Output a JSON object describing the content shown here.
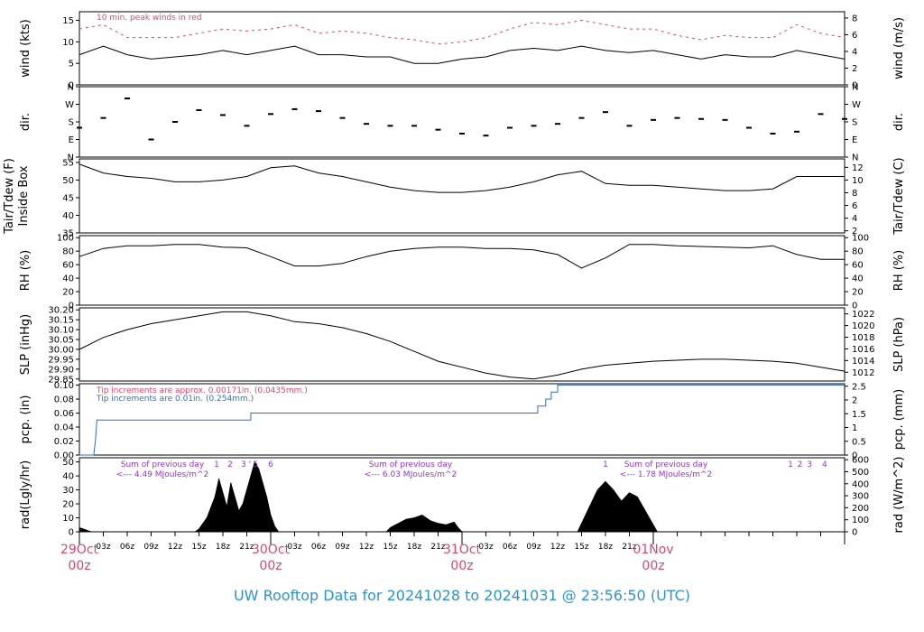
{
  "colors": {
    "peak": "#e0456a",
    "precip_tipping": "#2a6fd0",
    "rad_note": "#9b30d8",
    "footer": "#2a93d5",
    "black": "#000000"
  },
  "footer_title": "UW Rooftop Data for 20241028  to  20241031 @ 23:56:50  (UTC)",
  "x_axis": {
    "hour_labels": [
      "03z",
      "06z",
      "09z",
      "12z",
      "15z",
      "18z",
      "21z",
      "03z",
      "06z",
      "09z",
      "12z",
      "15z",
      "18z",
      "21z",
      "03z",
      "06z",
      "09z",
      "12z",
      "15z",
      "18z",
      "21z"
    ],
    "day_labels": [
      {
        "date": "29Oct",
        "hour": "00z"
      },
      {
        "date": "30Oct",
        "hour": "00z"
      },
      {
        "date": "31Oct",
        "hour": "00z"
      },
      {
        "date": "01Nov",
        "hour": "00z"
      }
    ]
  },
  "panels": {
    "wind": {
      "left_label": "wind (kts)",
      "right_label": "wind (m/s)",
      "left_ticks": [
        "0",
        "5",
        "10",
        "15"
      ],
      "right_ticks": [
        "0",
        "2",
        "4",
        "6",
        "8"
      ],
      "note": "10 min. peak winds in red"
    },
    "dir": {
      "left_label": "dir.",
      "right_label": "dir.",
      "left_ticks": [
        "N",
        "E",
        "S",
        "W",
        "N"
      ],
      "right_ticks": [
        "N",
        "E",
        "S",
        "W",
        "N"
      ]
    },
    "temp": {
      "left_label_1": "Tair/Tdew (F)",
      "left_label_2": "Inside Box",
      "right_label": "Tair/Tdew (C)",
      "left_ticks": [
        "35",
        "40",
        "45",
        "50",
        "55"
      ],
      "right_ticks": [
        "2",
        "4",
        "6",
        "8",
        "10",
        "12"
      ]
    },
    "rh": {
      "left_label": "RH (%)",
      "right_label": "RH (%)",
      "left_ticks": [
        "0",
        "20",
        "40",
        "60",
        "80",
        "100"
      ],
      "right_ticks": [
        "0",
        "20",
        "40",
        "60",
        "80",
        "100"
      ]
    },
    "slp": {
      "left_label": "SLP (inHg)",
      "right_label": "SLP (hPa)",
      "left_ticks": [
        "29.85",
        "29.90",
        "29.95",
        "30.00",
        "30.05",
        "30.10",
        "30.15",
        "30.20"
      ],
      "right_ticks": [
        "1012",
        "1014",
        "1016",
        "1018",
        "1020",
        "1022"
      ]
    },
    "pcp": {
      "left_label": "pcp. (in)",
      "right_label": "pcp. (mm)",
      "left_ticks": [
        "0.00",
        "0.02",
        "0.04",
        "0.06",
        "0.08",
        "0.10"
      ],
      "right_ticks": [
        "0",
        "0.5",
        "1",
        "1.5",
        "2",
        "2.5"
      ],
      "note_red": "Tip increments are approx. 0.00171in. (0.0435mm.)",
      "note_blue": "Tip increments are 0.01in. (0.254mm.)"
    },
    "rad": {
      "left_label": "rad(Lgly/hr)",
      "right_label": "rad (W/m^2)",
      "left_ticks": [
        "0",
        "10",
        "20",
        "30",
        "40",
        "50"
      ],
      "right_ticks": [
        "0",
        "100",
        "200",
        "300",
        "400",
        "500",
        "600"
      ],
      "sums": [
        {
          "line1": "Sum of previous day",
          "line2": "<--- 4.49 MJoules/m^2"
        },
        {
          "line1": "Sum of previous day",
          "line2": "<--- 6.03 MJoules/m^2"
        },
        {
          "line1": "Sum of previous day",
          "line2": "<--- 1.78 MJoules/m^2"
        }
      ],
      "hour_marks": [
        {
          "text": "1",
          "hour": 17.2
        },
        {
          "text": "2",
          "hour": 18.9
        },
        {
          "text": "3",
          "hour": 20.6
        },
        {
          "text": "'",
          "hour": 21.4
        },
        {
          "text": "5",
          "hour": 22.1
        },
        {
          "text": "6",
          "hour": 24.0
        },
        {
          "text": "1",
          "hour": 66.0
        },
        {
          "text": "1",
          "hour": 89.2
        },
        {
          "text": "2",
          "hour": 90.4
        },
        {
          "text": "3",
          "hour": 91.6
        },
        {
          "text": "4",
          "hour": 93.5
        }
      ]
    }
  },
  "chart_data": [
    {
      "type": "line",
      "title": "wind",
      "ylabel": "wind (kts)",
      "ylim": [
        0,
        17
      ],
      "x_hours": [
        0,
        3,
        6,
        9,
        12,
        15,
        18,
        21,
        24,
        27,
        30,
        33,
        36,
        39,
        42,
        45,
        48,
        51,
        54,
        57,
        60,
        63,
        66,
        69,
        72,
        75,
        78,
        81,
        84,
        87,
        90,
        93,
        96
      ],
      "series": [
        {
          "values": [
            7,
            9,
            7,
            6,
            6.5,
            7,
            8,
            7,
            8,
            9,
            7,
            7,
            6.5,
            6.5,
            5,
            5,
            6,
            6.5,
            8,
            8.5,
            8,
            9,
            8,
            7.5,
            8,
            7,
            6,
            7,
            6.5,
            6.5,
            8,
            7,
            6
          ]
        },
        {
          "name": "10 min. peak winds in red",
          "values": [
            13,
            14,
            11,
            11,
            11,
            12,
            13,
            12.5,
            13,
            14,
            12,
            12.5,
            12,
            11,
            10.5,
            9.5,
            10,
            11,
            13,
            14.5,
            14,
            15,
            14,
            13,
            13,
            11.5,
            10.5,
            11.5,
            11,
            11,
            14,
            12,
            11
          ]
        }
      ]
    },
    {
      "type": "scatter",
      "title": "dir.",
      "ylabel": "dir.",
      "ylim": [
        0,
        360
      ],
      "x_hours": [
        0,
        3,
        6,
        9,
        12,
        15,
        18,
        21,
        24,
        27,
        30,
        33,
        36,
        39,
        42,
        45,
        48,
        51,
        54,
        57,
        60,
        63,
        66,
        69,
        72,
        75,
        78,
        81,
        84,
        87,
        90,
        93,
        96
      ],
      "series": [
        {
          "values": [
            150,
            200,
            300,
            90,
            180,
            240,
            215,
            160,
            220,
            245,
            235,
            200,
            170,
            160,
            160,
            140,
            120,
            110,
            150,
            160,
            170,
            200,
            230,
            160,
            190,
            200,
            195,
            190,
            150,
            120,
            130,
            220,
            195
          ]
        }
      ]
    },
    {
      "type": "line",
      "title": "Tair/Tdew (F) Inside Box",
      "ylabel": "Tair/Tdew (F)",
      "ylim": [
        35,
        56
      ],
      "x_hours": [
        0,
        3,
        6,
        9,
        12,
        15,
        18,
        21,
        24,
        27,
        30,
        33,
        36,
        39,
        42,
        45,
        48,
        51,
        54,
        57,
        60,
        63,
        66,
        69,
        72,
        75,
        78,
        81,
        84,
        87,
        90,
        93,
        96
      ],
      "series": [
        {
          "values": [
            54.5,
            52,
            51,
            50.5,
            49.5,
            49.5,
            50,
            51,
            53.5,
            54,
            52,
            51,
            49.5,
            48,
            47,
            46.5,
            46.5,
            47,
            48,
            49.5,
            51.5,
            52.5,
            49,
            48.5,
            48.5,
            48,
            47.5,
            47,
            47,
            47.5,
            51,
            51,
            51
          ]
        }
      ]
    },
    {
      "type": "line",
      "title": "RH (%)",
      "ylabel": "RH (%)",
      "ylim": [
        0,
        100
      ],
      "x_hours": [
        0,
        3,
        6,
        9,
        12,
        15,
        18,
        21,
        24,
        27,
        30,
        33,
        36,
        39,
        42,
        45,
        48,
        51,
        54,
        57,
        60,
        63,
        66,
        69,
        72,
        75,
        78,
        81,
        84,
        87,
        90,
        93,
        96
      ],
      "series": [
        {
          "values": [
            72,
            84,
            88,
            88,
            90,
            90,
            86,
            85,
            72,
            58,
            58,
            62,
            72,
            80,
            84,
            86,
            86,
            84,
            84,
            82,
            75,
            55,
            70,
            90,
            90,
            88,
            87,
            86,
            85,
            88,
            75,
            68,
            68
          ]
        }
      ]
    },
    {
      "type": "line",
      "title": "SLP (inHg)",
      "ylabel": "SLP (inHg)",
      "ylim": [
        29.84,
        30.21
      ],
      "x_hours": [
        0,
        3,
        6,
        9,
        12,
        15,
        18,
        21,
        24,
        27,
        30,
        33,
        36,
        39,
        42,
        45,
        48,
        51,
        54,
        57,
        60,
        63,
        66,
        69,
        72,
        75,
        78,
        81,
        84,
        87,
        90,
        93,
        96
      ],
      "series": [
        {
          "values": [
            30.0,
            30.06,
            30.1,
            30.13,
            30.15,
            30.17,
            30.19,
            30.19,
            30.17,
            30.14,
            30.13,
            30.11,
            30.08,
            30.04,
            29.99,
            29.94,
            29.91,
            29.88,
            29.86,
            29.85,
            29.87,
            29.9,
            29.92,
            29.93,
            29.94,
            29.945,
            29.95,
            29.95,
            29.945,
            29.94,
            29.93,
            29.91,
            29.89
          ]
        }
      ]
    },
    {
      "type": "line",
      "title": "pcp. (in)",
      "ylabel": "pcp. (in)",
      "ylim": [
        0,
        0.1
      ],
      "x_hours": [
        0,
        1.8,
        2.0,
        2.2,
        21.5,
        21.5,
        57.5,
        57.5,
        58.5,
        58.5,
        59.2,
        59.2,
        60.0,
        60.0,
        96
      ],
      "series": [
        {
          "name": "Tip increments are 0.01in. (0.254mm.)",
          "values": [
            0,
            0,
            0.02,
            0.05,
            0.05,
            0.06,
            0.06,
            0.07,
            0.07,
            0.08,
            0.08,
            0.09,
            0.09,
            0.1,
            0.1
          ]
        }
      ]
    },
    {
      "type": "area",
      "title": "rad(Lgly/hr)",
      "ylabel": "rad(Lgly/hr)",
      "ylim": [
        0,
        53
      ],
      "x_hours": [
        0,
        0.5,
        1,
        1.5,
        2,
        14.5,
        15,
        16,
        17,
        17.5,
        18,
        18.5,
        19,
        19.5,
        20,
        20.5,
        21,
        21.5,
        22,
        22.5,
        23,
        23.5,
        24,
        24.5,
        25,
        38.5,
        39,
        40,
        41,
        42,
        43,
        44,
        45,
        46,
        47,
        47.5,
        48,
        49,
        62.5,
        63,
        64,
        65,
        66,
        67,
        68,
        69,
        70,
        71,
        72,
        72.5
      ],
      "series": [
        {
          "values": [
            3,
            2,
            1,
            0,
            0,
            0,
            2,
            10,
            25,
            38,
            28,
            18,
            35,
            25,
            15,
            20,
            30,
            40,
            50,
            45,
            35,
            25,
            12,
            4,
            0,
            0,
            3,
            6,
            9,
            10,
            12,
            8,
            6,
            5,
            7,
            3,
            0,
            0,
            0,
            6,
            18,
            30,
            36,
            30,
            22,
            28,
            25,
            15,
            5,
            0
          ]
        }
      ]
    }
  ]
}
